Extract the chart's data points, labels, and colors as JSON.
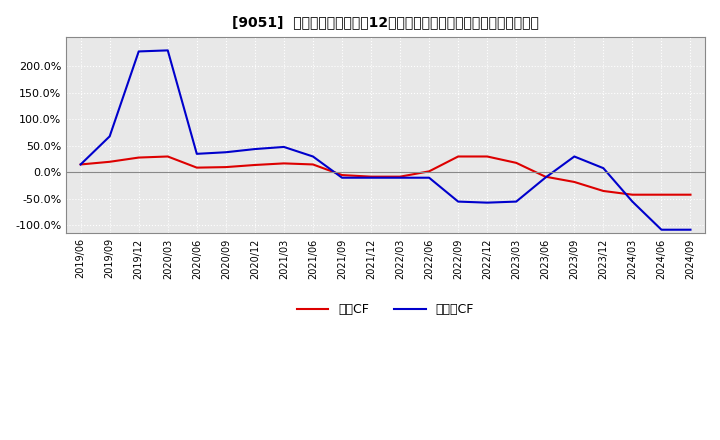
{
  "title": "[9051]  キャッシュフローの12か月移動合計の対前年同期増減率の推移",
  "legend_labels": [
    "営業CF",
    "フリーCF"
  ],
  "line_colors": [
    "#dd0000",
    "#0000cc"
  ],
  "ylim": [
    -1.15,
    2.55
  ],
  "yticks": [
    -1.0,
    -0.5,
    0.0,
    0.5,
    1.0,
    1.5,
    2.0
  ],
  "ytick_labels": [
    "-100.0%",
    "-50.0%",
    "0.0%",
    "50.0%",
    "100.0%",
    "150.0%",
    "200.0%"
  ],
  "background_color": "#ffffff",
  "plot_bg_color": "#e8e8e8",
  "grid_color": "#ffffff",
  "dates": [
    "2019/06",
    "2019/09",
    "2019/12",
    "2020/03",
    "2020/06",
    "2020/09",
    "2020/12",
    "2021/03",
    "2021/06",
    "2021/09",
    "2021/12",
    "2022/03",
    "2022/06",
    "2022/09",
    "2022/12",
    "2023/03",
    "2023/06",
    "2023/09",
    "2023/12",
    "2024/03",
    "2024/06",
    "2024/09"
  ],
  "operating_cf": [
    0.15,
    0.2,
    0.28,
    0.3,
    0.09,
    0.1,
    0.14,
    0.17,
    0.15,
    -0.05,
    -0.08,
    -0.08,
    0.02,
    0.3,
    0.3,
    0.18,
    -0.08,
    -0.18,
    -0.35,
    -0.42,
    -0.42,
    -0.42
  ],
  "free_cf": [
    0.15,
    0.68,
    2.28,
    2.3,
    0.35,
    0.38,
    0.44,
    0.48,
    0.3,
    -0.1,
    -0.1,
    -0.1,
    -0.1,
    -0.55,
    -0.57,
    -0.55,
    -0.1,
    0.3,
    0.08,
    -0.55,
    -1.08,
    -1.08
  ]
}
